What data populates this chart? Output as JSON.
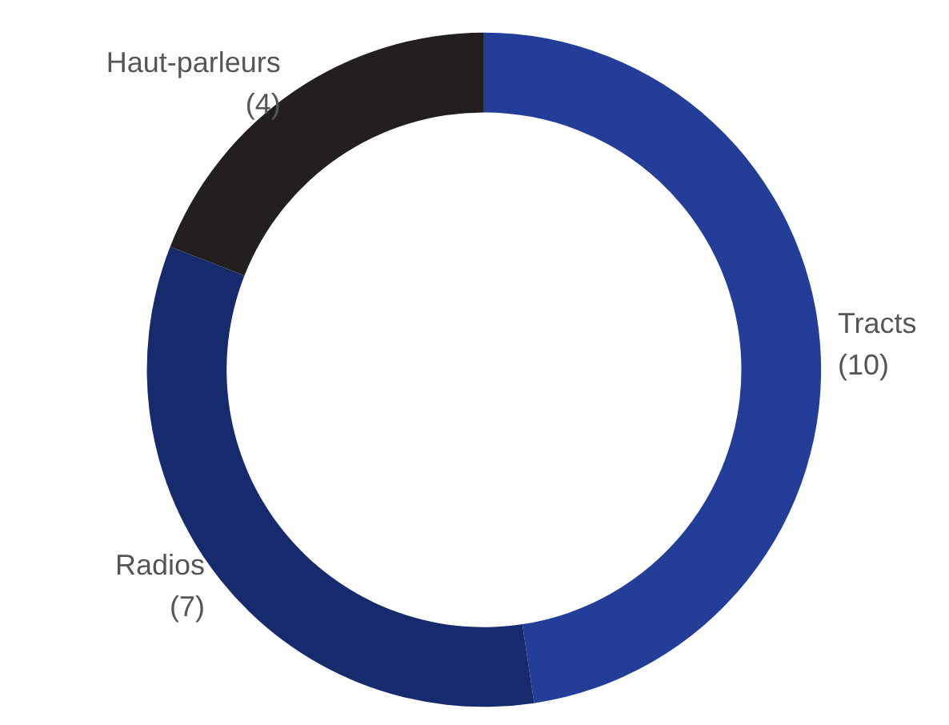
{
  "chart_data": {
    "type": "donut",
    "categories": [
      "Tracts",
      "Radios",
      "Haut-parleurs"
    ],
    "values": [
      10,
      7,
      4
    ],
    "colors": [
      "#233e98",
      "#162a6e",
      "#231f20"
    ],
    "value_labels": [
      "(10)",
      "(7)",
      "(4)"
    ],
    "legend": false
  }
}
